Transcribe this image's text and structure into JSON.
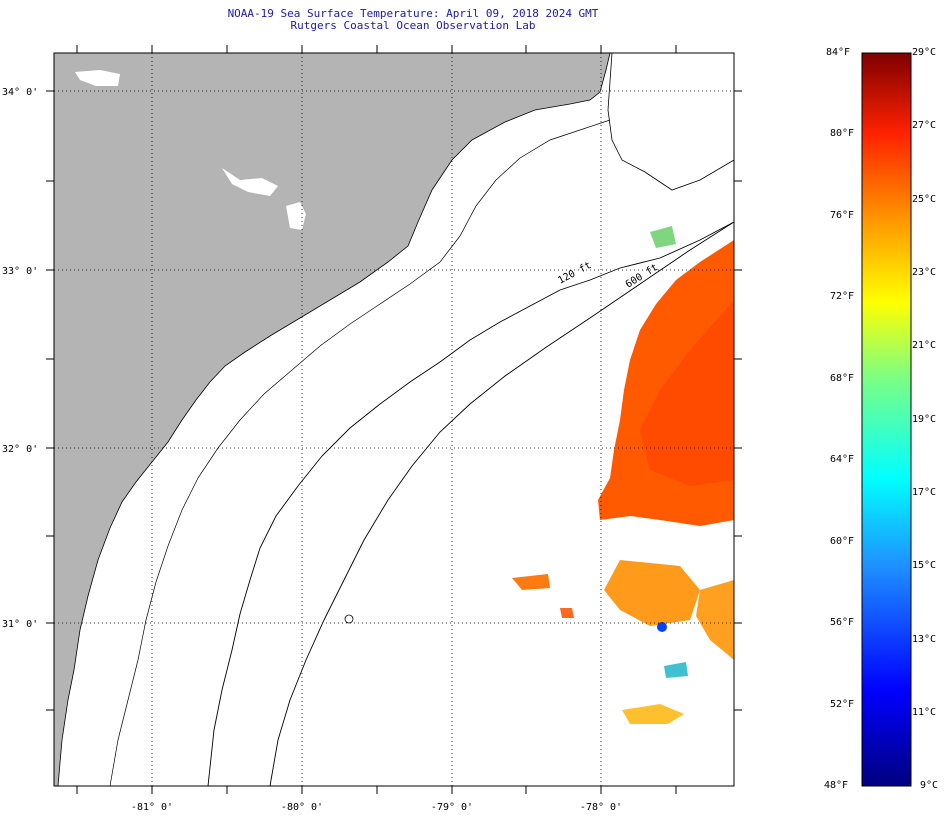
{
  "title": {
    "line1": "NOAA-19 Sea Surface Temperature:  April 09, 2018 2024 GMT",
    "line2": "Rutgers Coastal Ocean Observation Lab"
  },
  "map": {
    "lat_labels": [
      "34° 0'",
      "33° 0'",
      "32° 0'",
      "31° 0'"
    ],
    "lon_labels": [
      "-81° 0'",
      "-80° 0'",
      "-79° 0'",
      "-78° 0'"
    ],
    "contour_labels": [
      "120 ft",
      "600 ft"
    ],
    "land_color": "#b4b4b4",
    "ocean_color": "#ffffff"
  },
  "colorbar": {
    "fahrenheit": [
      "84°F",
      "80°F",
      "76°F",
      "72°F",
      "68°F",
      "64°F",
      "60°F",
      "56°F",
      "52°F",
      "48°F"
    ],
    "celsius": [
      "29°C",
      "27°C",
      "25°C",
      "23°C",
      "21°C",
      "19°C",
      "17°C",
      "15°C",
      "13°C",
      "11°C",
      "9°C"
    ]
  }
}
